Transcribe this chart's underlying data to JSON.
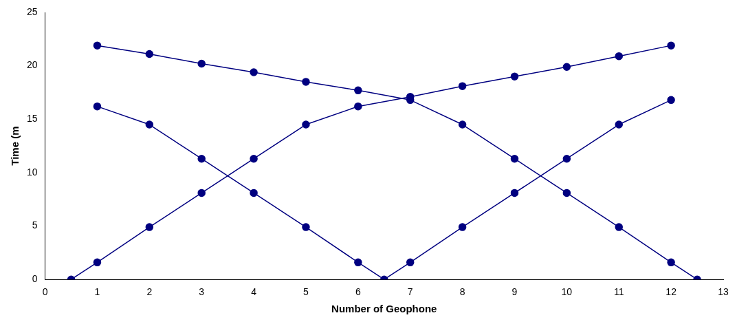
{
  "chart_data": {
    "type": "line",
    "xlabel": "Number of Geophone",
    "ylabel": "Time (m",
    "xlim": [
      0,
      13
    ],
    "xticks": [
      0,
      1,
      2,
      3,
      4,
      5,
      6,
      7,
      8,
      9,
      10,
      11,
      12,
      13
    ],
    "ylim": [
      0,
      25
    ],
    "yticks": [
      0,
      5,
      10,
      15,
      20,
      25
    ],
    "grid": false,
    "legend": false,
    "marker": "circle",
    "line_style": "solid",
    "series": [
      {
        "color": "#000080",
        "x": [
          0.5,
          1,
          2,
          3,
          4,
          5,
          6,
          7,
          8,
          9,
          10,
          11,
          12
        ],
        "values": [
          0,
          1.6,
          4.9,
          8.1,
          11.3,
          14.5,
          16.2,
          17.1,
          18.1,
          19.0,
          19.9,
          20.9,
          21.9
        ]
      },
      {
        "color": "#000080",
        "x": [
          1,
          2,
          3,
          4,
          5,
          6,
          7,
          8,
          9,
          10,
          11,
          12,
          12.5
        ],
        "values": [
          21.9,
          21.1,
          20.2,
          19.4,
          18.5,
          17.7,
          16.8,
          14.5,
          11.3,
          8.1,
          4.9,
          1.6,
          0
        ]
      },
      {
        "color": "#000080",
        "x": [
          1,
          2,
          3,
          4,
          5,
          6,
          6.5,
          7,
          8,
          9,
          10,
          11,
          12
        ],
        "values": [
          16.2,
          14.5,
          11.3,
          8.1,
          4.9,
          1.6,
          0,
          1.6,
          4.9,
          8.1,
          11.3,
          14.5,
          16.8
        ]
      }
    ]
  }
}
